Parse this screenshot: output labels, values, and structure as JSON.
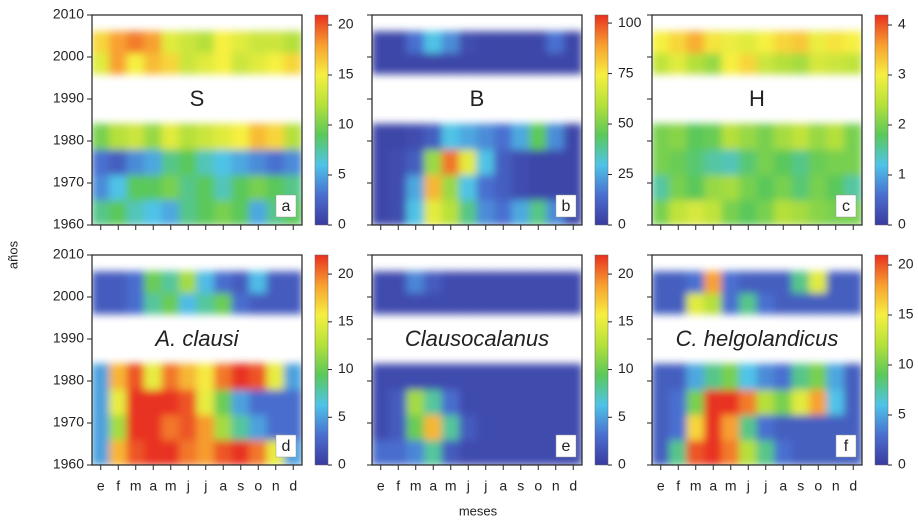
{
  "x_label": "meses",
  "y_label": "años",
  "chart_data": [
    {
      "type": "heatmap",
      "title": "S",
      "letter": "a",
      "italic": false,
      "categories": [
        "e",
        "f",
        "m",
        "a",
        "m",
        "j",
        "j",
        "a",
        "s",
        "o",
        "n",
        "d"
      ],
      "y": [
        1963,
        1969,
        1975,
        1981,
        1998.5,
        2003.5
      ],
      "values": [
        [
          8,
          9,
          7,
          6,
          5,
          8,
          9,
          10,
          9,
          5,
          8,
          9
        ],
        [
          4,
          6,
          9,
          9,
          10,
          8,
          9,
          7,
          9,
          10,
          9,
          8
        ],
        [
          3,
          2,
          4,
          5,
          8,
          9,
          7,
          6,
          5,
          4,
          3,
          4
        ],
        [
          10,
          12,
          13,
          11,
          14,
          12,
          13,
          14,
          15,
          17,
          16,
          12
        ],
        [
          14,
          18,
          15,
          17,
          16,
          13,
          14,
          15,
          13,
          14,
          15,
          16
        ],
        [
          16,
          18,
          19,
          18,
          14,
          13,
          12,
          15,
          14,
          13,
          13,
          12
        ]
      ],
      "ylim": [
        1960,
        2010
      ],
      "yticks": [
        1960,
        1970,
        1980,
        1990,
        2000,
        2010
      ],
      "clim": [
        0,
        21
      ],
      "cticks": [
        0,
        5,
        10,
        15,
        20
      ],
      "colormap": [
        "#3b3b9e",
        "#4a6fd0",
        "#4fc3e8",
        "#5ac85a",
        "#b5e03a",
        "#f6f040",
        "#f8a030",
        "#e83020"
      ]
    },
    {
      "type": "heatmap",
      "title": "B",
      "letter": "b",
      "italic": false,
      "categories": [
        "e",
        "f",
        "m",
        "a",
        "m",
        "j",
        "j",
        "a",
        "s",
        "o",
        "n",
        "d"
      ],
      "y": [
        1963,
        1969,
        1975,
        1981,
        1998.5,
        2003.5
      ],
      "values": [
        [
          3,
          5,
          30,
          70,
          60,
          40,
          20,
          15,
          25,
          40,
          20,
          3
        ],
        [
          3,
          5,
          25,
          85,
          55,
          30,
          15,
          10,
          5,
          3,
          3,
          3
        ],
        [
          3,
          5,
          10,
          55,
          95,
          70,
          30,
          10,
          5,
          3,
          3,
          3
        ],
        [
          3,
          3,
          5,
          10,
          30,
          25,
          20,
          15,
          25,
          45,
          20,
          3
        ],
        [
          3,
          3,
          3,
          3,
          3,
          3,
          3,
          3,
          3,
          3,
          3,
          3
        ],
        [
          3,
          3,
          15,
          30,
          20,
          5,
          3,
          3,
          3,
          3,
          15,
          3
        ]
      ],
      "ylim": [
        1960,
        2010
      ],
      "yticks": [
        1960,
        1970,
        1980,
        1990,
        2000,
        2010
      ],
      "clim": [
        0,
        104
      ],
      "cticks": [
        0,
        25,
        50,
        75,
        100
      ],
      "colormap": [
        "#3b3b9e",
        "#4a6fd0",
        "#4fc3e8",
        "#5ac85a",
        "#b5e03a",
        "#f6f040",
        "#f8a030",
        "#e83020"
      ]
    },
    {
      "type": "heatmap",
      "title": "H",
      "letter": "c",
      "italic": false,
      "categories": [
        "e",
        "f",
        "m",
        "a",
        "m",
        "j",
        "j",
        "a",
        "s",
        "o",
        "n",
        "d"
      ],
      "y": [
        1963,
        1969,
        1975,
        1981,
        1998.5,
        2003.5
      ],
      "values": [
        [
          2,
          2.5,
          2.7,
          2.5,
          2,
          1.8,
          2,
          2.4,
          2.3,
          2.1,
          2,
          2
        ],
        [
          1.5,
          2,
          1.8,
          2.2,
          2.3,
          2,
          1.8,
          2,
          1.7,
          2,
          1.8,
          1.5
        ],
        [
          2,
          1.9,
          1.7,
          1.5,
          1.4,
          1.7,
          2,
          1.8,
          1.6,
          1.9,
          2,
          2
        ],
        [
          2,
          2.1,
          1.8,
          1.9,
          2.4,
          2.2,
          2,
          2.3,
          2.5,
          2.2,
          2.4,
          2
        ],
        [
          2.5,
          2.8,
          2.4,
          2.2,
          3,
          3.2,
          2.6,
          2.4,
          2.3,
          2.7,
          2.6,
          2.5
        ],
        [
          3,
          3.2,
          3.5,
          3.1,
          2.9,
          2.8,
          3,
          3.2,
          3.3,
          2.9,
          3.1,
          3
        ]
      ],
      "ylim": [
        1960,
        2010
      ],
      "yticks": [
        1960,
        1970,
        1980,
        1990,
        2000,
        2010
      ],
      "clim": [
        0,
        4.2
      ],
      "cticks": [
        0,
        1,
        2,
        3,
        4
      ],
      "colormap": [
        "#3b3b9e",
        "#4a6fd0",
        "#4fc3e8",
        "#5ac85a",
        "#b5e03a",
        "#f6f040",
        "#f8a030",
        "#e83020"
      ]
    },
    {
      "type": "heatmap",
      "title": "A. clausi",
      "letter": "d",
      "italic": true,
      "categories": [
        "e",
        "f",
        "m",
        "a",
        "m",
        "j",
        "j",
        "a",
        "s",
        "o",
        "n",
        "d"
      ],
      "y": [
        1963,
        1969,
        1975,
        1981,
        1998.5,
        2003.5
      ],
      "values": [
        [
          5,
          18,
          21,
          22,
          22,
          20,
          19,
          21,
          22,
          20,
          15,
          5
        ],
        [
          5,
          12,
          22,
          22,
          20,
          21,
          19,
          12,
          8,
          5,
          3,
          3
        ],
        [
          5,
          15,
          22,
          22,
          22,
          21,
          15,
          10,
          5,
          3,
          3,
          3
        ],
        [
          5,
          18,
          21,
          15,
          20,
          18,
          16,
          20,
          22,
          21,
          15,
          5
        ],
        [
          2,
          2,
          3,
          8,
          10,
          6,
          8,
          10,
          3,
          2,
          2,
          2
        ],
        [
          2,
          2,
          3,
          10,
          8,
          12,
          6,
          3,
          2,
          6,
          2,
          2
        ]
      ],
      "ylim": [
        1960,
        2010
      ],
      "yticks": [
        1960,
        1970,
        1980,
        1990,
        2000,
        2010
      ],
      "clim": [
        0,
        22
      ],
      "cticks": [
        0,
        5,
        10,
        15,
        20
      ],
      "colormap": [
        "#3b3b9e",
        "#4a6fd0",
        "#4fc3e8",
        "#5ac85a",
        "#b5e03a",
        "#f6f040",
        "#f8a030",
        "#e83020"
      ]
    },
    {
      "type": "heatmap",
      "title": "Clausocalanus",
      "letter": "e",
      "italic": true,
      "categories": [
        "e",
        "f",
        "m",
        "a",
        "m",
        "j",
        "j",
        "a",
        "s",
        "o",
        "n",
        "d"
      ],
      "y": [
        1963,
        1969,
        1975,
        1981,
        1998.5,
        2003.5
      ],
      "values": [
        [
          3,
          3,
          4,
          8,
          2,
          1,
          1,
          1,
          1,
          1,
          1,
          1
        ],
        [
          1,
          2,
          10,
          18,
          8,
          2,
          1,
          1,
          1,
          1,
          1,
          1
        ],
        [
          1,
          2,
          12,
          8,
          3,
          1,
          1,
          1,
          1,
          1,
          1,
          1
        ],
        [
          1,
          1,
          1,
          1,
          1,
          1,
          1,
          1,
          1,
          1,
          1,
          1
        ],
        [
          1,
          1,
          1,
          1,
          1,
          1,
          1,
          1,
          1,
          1,
          1,
          1
        ],
        [
          1,
          1,
          4,
          2,
          1,
          1,
          1,
          1,
          1,
          1,
          1,
          1
        ]
      ],
      "ylim": [
        1960,
        2010
      ],
      "yticks": [
        1960,
        1970,
        1980,
        1990,
        2000,
        2010
      ],
      "clim": [
        0,
        22
      ],
      "cticks": [
        0,
        5,
        10,
        15,
        20
      ],
      "colormap": [
        "#3b3b9e",
        "#4a6fd0",
        "#4fc3e8",
        "#5ac85a",
        "#b5e03a",
        "#f6f040",
        "#f8a030",
        "#e83020"
      ]
    },
    {
      "type": "heatmap",
      "title": "C. helgolandicus",
      "letter": "f",
      "italic": true,
      "categories": [
        "e",
        "f",
        "m",
        "a",
        "m",
        "j",
        "j",
        "a",
        "s",
        "o",
        "n",
        "d"
      ],
      "y": [
        1963,
        1969,
        1975,
        1981,
        1998.5,
        2003.5
      ],
      "values": [
        [
          2,
          8,
          20,
          21,
          19,
          12,
          8,
          3,
          2,
          2,
          2,
          2
        ],
        [
          2,
          3,
          16,
          21,
          18,
          8,
          3,
          2,
          2,
          2,
          2,
          2
        ],
        [
          2,
          3,
          10,
          21,
          21,
          19,
          12,
          10,
          14,
          18,
          6,
          2
        ],
        [
          2,
          2,
          5,
          8,
          10,
          6,
          4,
          3,
          8,
          10,
          5,
          2
        ],
        [
          2,
          2,
          14,
          12,
          3,
          8,
          3,
          2,
          2,
          2,
          2,
          2
        ],
        [
          2,
          2,
          3,
          18,
          3,
          2,
          2,
          2,
          8,
          14,
          2,
          2
        ]
      ],
      "ylim": [
        1960,
        2010
      ],
      "yticks": [
        1960,
        1970,
        1980,
        1990,
        2000,
        2010
      ],
      "clim": [
        0,
        21
      ],
      "cticks": [
        0,
        5,
        10,
        15,
        20
      ],
      "colormap": [
        "#3b3b9e",
        "#4a6fd0",
        "#4fc3e8",
        "#5ac85a",
        "#b5e03a",
        "#f6f040",
        "#f8a030",
        "#e83020"
      ]
    }
  ]
}
